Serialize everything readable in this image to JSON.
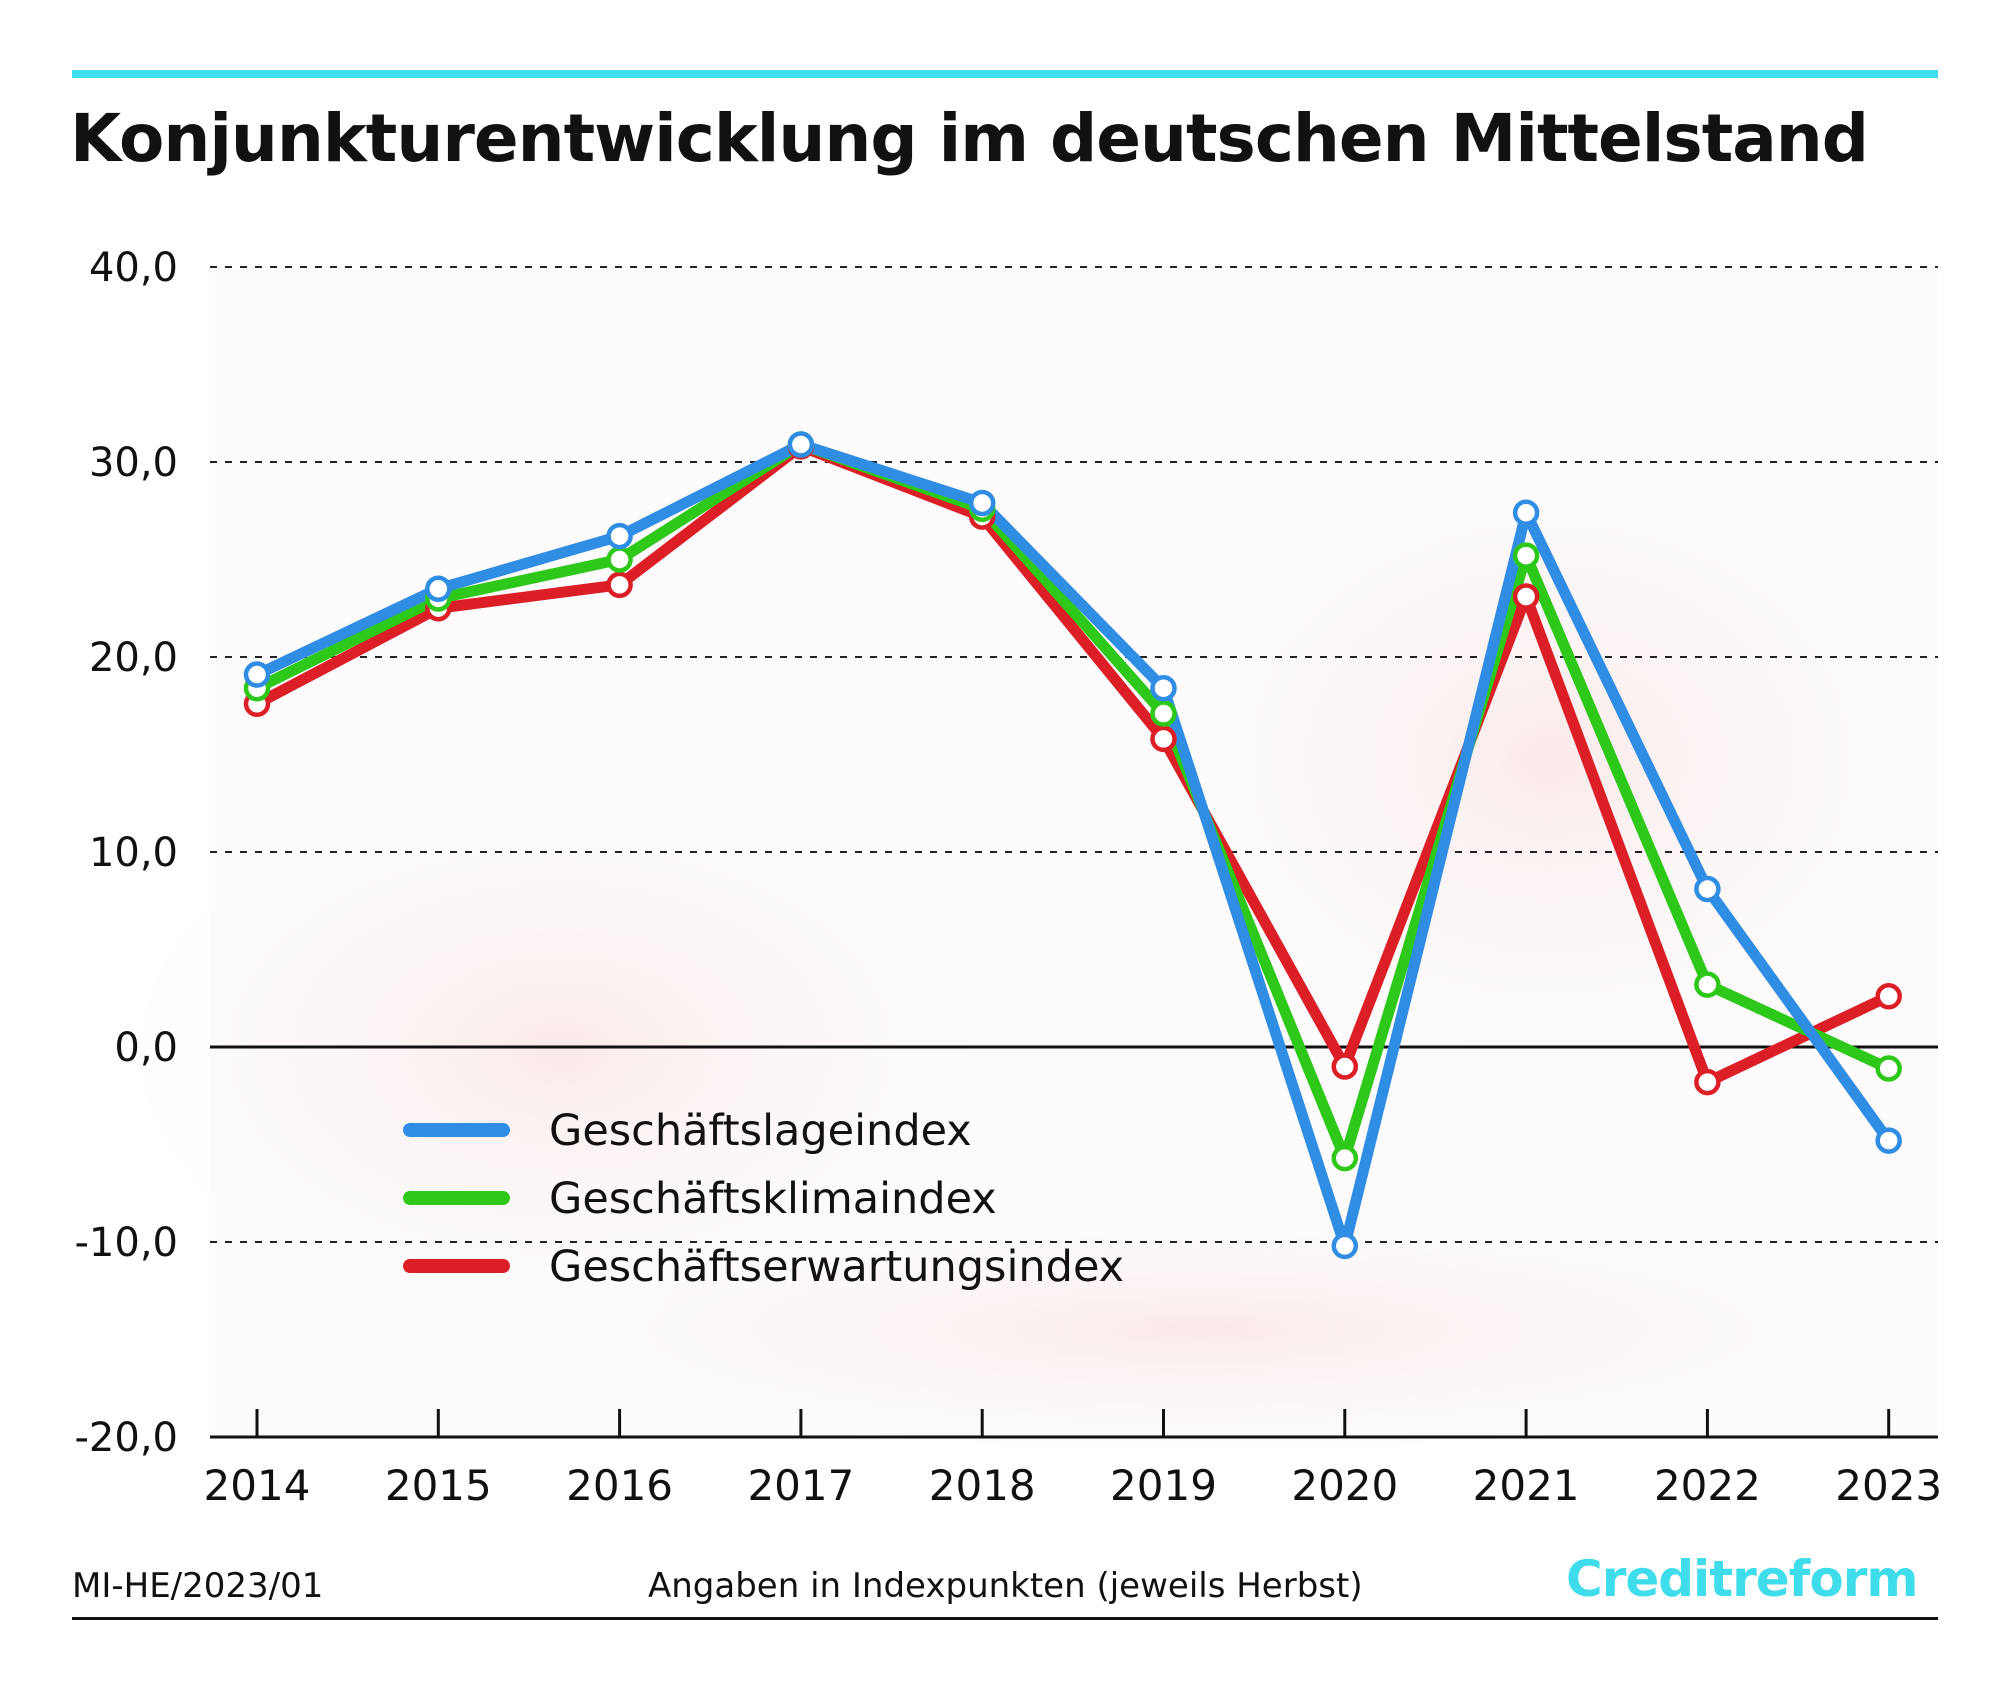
{
  "title": "Konjunkturentwicklung im deutschen Mittelstand",
  "footer": {
    "code": "MI-HE/2023/01",
    "note": "Angaben in Indexpunkten (jeweils Herbst)",
    "brand": "Creditreform"
  },
  "colors": {
    "accent": "#3fdcec",
    "blue": "#2f8de4",
    "green": "#2ec81a",
    "red": "#dc1f26"
  },
  "chart_data": {
    "type": "line",
    "title": "Konjunkturentwicklung im deutschen Mittelstand",
    "xlabel": "",
    "ylabel": "",
    "x": [
      "2014",
      "2015",
      "2016",
      "2017",
      "2018",
      "2019",
      "2020",
      "2021",
      "2022",
      "2023"
    ],
    "ylim": [
      -20,
      40
    ],
    "yticks": [
      "40,0",
      "30,0",
      "20,0",
      "10,0",
      "0,0",
      "-10,0",
      "-20,0"
    ],
    "grid": true,
    "legend": "lower-left",
    "series": [
      {
        "name": "Geschäftslageindex",
        "color": "#2f8de4",
        "values": [
          19.1,
          23.5,
          26.2,
          30.9,
          27.9,
          18.4,
          -10.2,
          27.4,
          8.1,
          -4.8
        ]
      },
      {
        "name": "Geschäftsklimaindex",
        "color": "#2ec81a",
        "values": [
          18.4,
          23.0,
          25.0,
          30.9,
          27.6,
          17.1,
          -5.7,
          25.2,
          3.2,
          -1.1
        ]
      },
      {
        "name": "Geschäftserwartungsindex",
        "color": "#dc1f26",
        "values": [
          17.6,
          22.5,
          23.7,
          30.8,
          27.2,
          15.8,
          -1.0,
          23.1,
          -1.8,
          2.6
        ]
      }
    ]
  }
}
